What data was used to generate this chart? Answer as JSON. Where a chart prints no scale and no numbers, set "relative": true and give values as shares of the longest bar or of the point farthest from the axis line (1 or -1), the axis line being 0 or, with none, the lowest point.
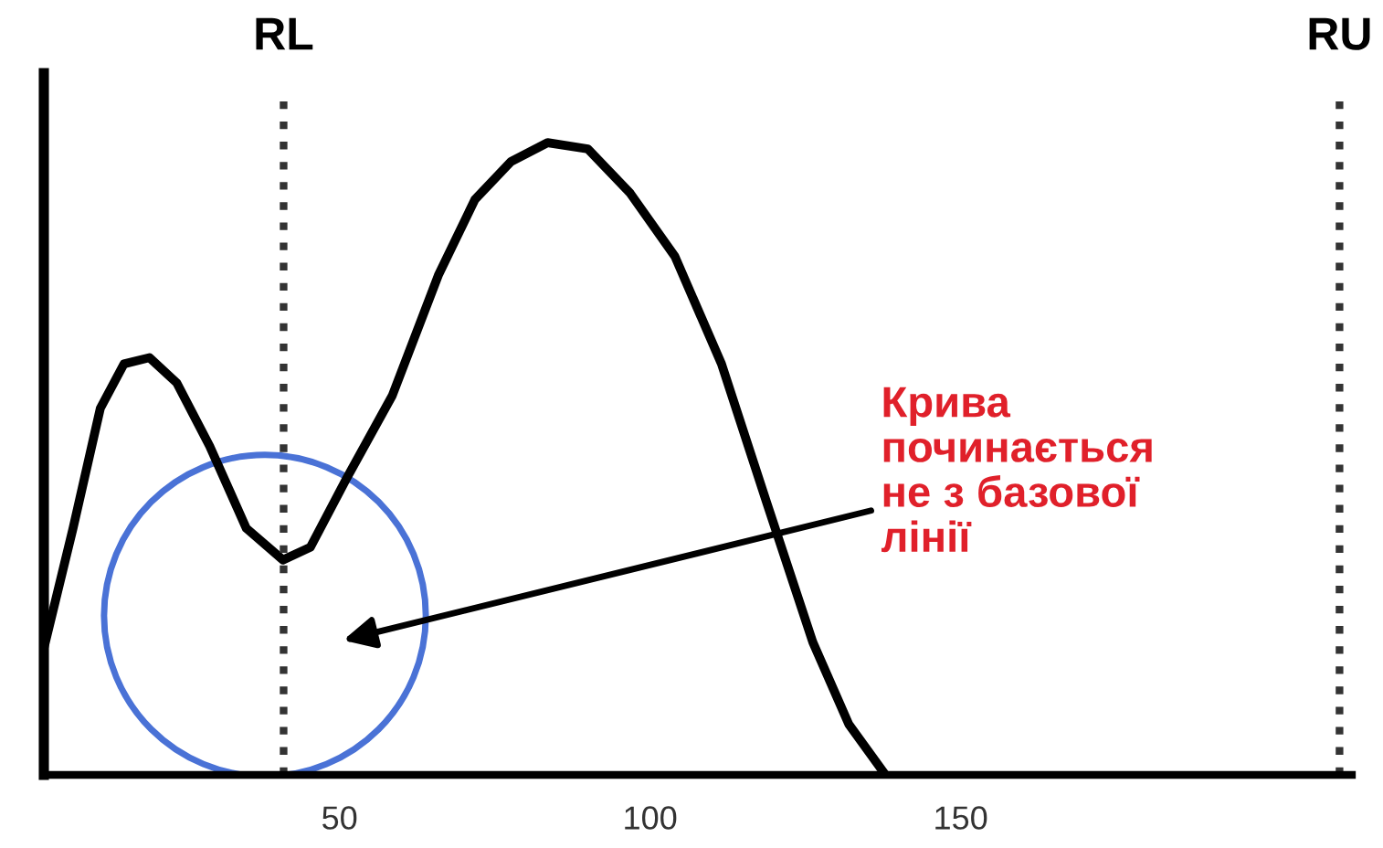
{
  "chart_data": {
    "type": "line",
    "relative": true,
    "color": "#000000",
    "line_style": "solid",
    "marker": "none",
    "grid": false,
    "tick_labels": "x",
    "x": [
      2.4,
      7.1,
      11.5,
      15.3,
      19.4,
      23.8,
      29.1,
      35,
      40.9,
      45.3,
      51.2,
      58.5,
      65.9,
      71.8,
      77.6,
      83.5,
      90,
      96.8,
      104,
      111.5,
      118.8,
      126.2,
      132,
      137.9
    ],
    "values": [
      0.2,
      0.39,
      0.58,
      0.65,
      0.66,
      0.62,
      0.52,
      0.39,
      0.34,
      0.36,
      0.47,
      0.6,
      0.79,
      0.91,
      0.97,
      1.0,
      0.99,
      0.92,
      0.82,
      0.65,
      0.43,
      0.21,
      0.08,
      0
    ],
    "xlim": [
      2.4,
      213
    ],
    "xticks": [
      50,
      100,
      150
    ],
    "ref_lines": [
      {
        "axis": "x",
        "value": 41,
        "label": "RL",
        "line_style": "dotted",
        "color": "#333333"
      },
      {
        "axis": "x",
        "value": 211,
        "label": "RU",
        "line_style": "dotted",
        "color": "#333333"
      }
    ],
    "annotations": [
      "Крива\nпочинається\nне з базової\nлінії"
    ]
  }
}
